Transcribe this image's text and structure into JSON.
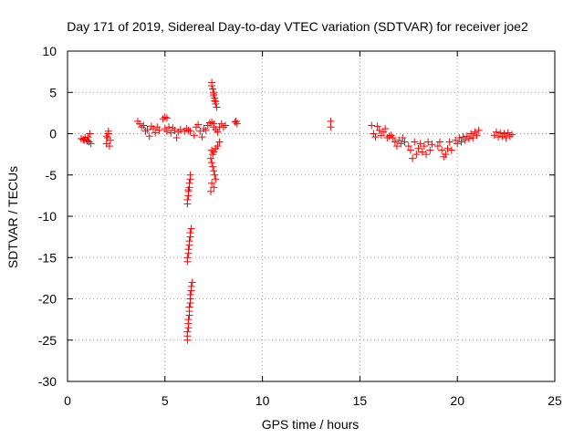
{
  "chart_data": {
    "type": "scatter",
    "title": "Day 171 of 2019, Sidereal Day-to-day VTEC variation (SDTVAR) for receiver joe2",
    "xlabel": "GPS time / hours",
    "ylabel": "SDTVAR / TECUs",
    "xlim": [
      0,
      25
    ],
    "ylim": [
      -30,
      10
    ],
    "xticks": [
      0,
      5,
      10,
      15,
      20,
      25
    ],
    "yticks": [
      10,
      5,
      0,
      -5,
      -10,
      -15,
      -20,
      -25,
      -30
    ],
    "xtick_labels": [
      "0",
      "5",
      "10",
      "15",
      "20",
      "25"
    ],
    "ytick_labels": [
      "10",
      "5",
      "0",
      "-5",
      "-10",
      "-15",
      "-20",
      "-25",
      "-30"
    ],
    "grid": true,
    "marker": "+",
    "color": "#ff0000",
    "series": [
      {
        "name": "SDTVAR",
        "points": [
          [
            0.7,
            -0.6
          ],
          [
            0.8,
            -0.7
          ],
          [
            0.9,
            -0.5
          ],
          [
            1.0,
            -0.8
          ],
          [
            1.05,
            -0.4
          ],
          [
            1.1,
            -1.0
          ],
          [
            1.15,
            0.0
          ],
          [
            1.2,
            -1.2
          ],
          [
            1.0,
            -0.9
          ],
          [
            0.85,
            -0.8
          ],
          [
            2.0,
            -1.2
          ],
          [
            2.05,
            -0.5
          ],
          [
            2.1,
            0.0
          ],
          [
            2.1,
            0.3
          ],
          [
            2.15,
            -1.5
          ],
          [
            2.2,
            -0.8
          ],
          [
            2.0,
            -0.3
          ],
          [
            3.6,
            1.5
          ],
          [
            3.7,
            1.2
          ],
          [
            3.8,
            0.8
          ],
          [
            3.9,
            1.0
          ],
          [
            4.0,
            0.3
          ],
          [
            4.1,
            0.5
          ],
          [
            4.2,
            -0.3
          ],
          [
            4.3,
            0.9
          ],
          [
            4.4,
            0.6
          ],
          [
            4.5,
            0.1
          ],
          [
            4.6,
            0.8
          ],
          [
            4.7,
            0.4
          ],
          [
            4.9,
            1.8
          ],
          [
            5.0,
            2.0
          ],
          [
            5.1,
            1.9
          ],
          [
            5.0,
            0.6
          ],
          [
            5.1,
            0.3
          ],
          [
            5.2,
            0.8
          ],
          [
            5.3,
            0.1
          ],
          [
            5.4,
            0.7
          ],
          [
            5.5,
            0.4
          ],
          [
            5.6,
            -0.5
          ],
          [
            5.7,
            0.2
          ],
          [
            5.8,
            0.5
          ],
          [
            6.0,
            0.3
          ],
          [
            6.1,
            0.6
          ],
          [
            6.2,
            0.4
          ],
          [
            6.3,
            0.3
          ],
          [
            6.5,
            -0.2
          ],
          [
            6.6,
            0.8
          ],
          [
            6.7,
            1.1
          ],
          [
            6.8,
            0.3
          ],
          [
            6.9,
            -0.4
          ],
          [
            7.0,
            0.6
          ],
          [
            7.1,
            0.4
          ],
          [
            7.2,
            1.0
          ],
          [
            7.4,
            6.2
          ],
          [
            7.4,
            5.8
          ],
          [
            7.45,
            5.4
          ],
          [
            7.5,
            5.0
          ],
          [
            7.5,
            4.6
          ],
          [
            7.55,
            4.3
          ],
          [
            7.6,
            3.9
          ],
          [
            7.6,
            3.6
          ],
          [
            7.65,
            3.2
          ],
          [
            7.5,
            4.8
          ],
          [
            7.55,
            4.0
          ],
          [
            7.4,
            -2.0
          ],
          [
            7.45,
            -2.5
          ],
          [
            7.5,
            -2.2
          ],
          [
            7.6,
            -1.8
          ],
          [
            7.7,
            -1.5
          ],
          [
            7.8,
            -1.0
          ],
          [
            7.35,
            -3.0
          ],
          [
            7.4,
            -3.5
          ],
          [
            7.45,
            -4.0
          ],
          [
            7.5,
            -4.5
          ],
          [
            7.55,
            -5.0
          ],
          [
            7.6,
            -5.5
          ],
          [
            7.4,
            -6.0
          ],
          [
            7.35,
            -7.0
          ],
          [
            7.5,
            -6.5
          ],
          [
            7.3,
            1.3
          ],
          [
            7.4,
            1.4
          ],
          [
            7.5,
            1.2
          ],
          [
            7.6,
            0.5
          ],
          [
            7.7,
            0.2
          ],
          [
            7.8,
            0.8
          ],
          [
            7.9,
            1.2
          ],
          [
            8.0,
            0.8
          ],
          [
            8.1,
            1.0
          ],
          [
            7.5,
            0.8
          ],
          [
            8.6,
            1.4
          ],
          [
            8.7,
            1.2
          ],
          [
            8.65,
            1.5
          ],
          [
            6.3,
            -5.0
          ],
          [
            6.3,
            -5.5
          ],
          [
            6.25,
            -6.0
          ],
          [
            6.25,
            -6.5
          ],
          [
            6.2,
            -7.0
          ],
          [
            6.2,
            -7.5
          ],
          [
            6.15,
            -8.0
          ],
          [
            6.15,
            -8.5
          ],
          [
            6.2,
            -6.8
          ],
          [
            6.35,
            -11.5
          ],
          [
            6.3,
            -12.0
          ],
          [
            6.3,
            -12.5
          ],
          [
            6.25,
            -13.0
          ],
          [
            6.25,
            -13.5
          ],
          [
            6.2,
            -14.0
          ],
          [
            6.2,
            -14.5
          ],
          [
            6.15,
            -15.0
          ],
          [
            6.15,
            -15.5
          ],
          [
            6.4,
            -18.0
          ],
          [
            6.35,
            -18.5
          ],
          [
            6.35,
            -19.0
          ],
          [
            6.3,
            -19.5
          ],
          [
            6.3,
            -20.0
          ],
          [
            6.3,
            -20.5
          ],
          [
            6.25,
            -21.0
          ],
          [
            6.25,
            -21.5
          ],
          [
            6.25,
            -22.0
          ],
          [
            6.2,
            -22.5
          ],
          [
            6.2,
            -23.0
          ],
          [
            6.2,
            -23.5
          ],
          [
            6.15,
            -24.0
          ],
          [
            6.15,
            -24.5
          ],
          [
            6.15,
            -25.0
          ],
          [
            13.5,
            1.5
          ],
          [
            13.5,
            0.8
          ],
          [
            15.6,
            1.0
          ],
          [
            15.7,
            0.0
          ],
          [
            15.8,
            -0.4
          ],
          [
            15.9,
            0.9
          ],
          [
            16.0,
            0.4
          ],
          [
            16.1,
            -0.2
          ],
          [
            16.2,
            0.2
          ],
          [
            16.3,
            0.6
          ],
          [
            16.4,
            -0.5
          ],
          [
            16.5,
            -0.3
          ],
          [
            16.6,
            -0.2
          ],
          [
            16.7,
            -0.5
          ],
          [
            16.8,
            -1.0
          ],
          [
            16.9,
            -1.5
          ],
          [
            17.0,
            -0.8
          ],
          [
            17.1,
            -1.2
          ],
          [
            17.2,
            -0.5
          ],
          [
            17.3,
            -1.0
          ],
          [
            17.5,
            -1.5
          ],
          [
            17.6,
            -2.0
          ],
          [
            17.7,
            -3.0
          ],
          [
            17.8,
            -1.0
          ],
          [
            17.9,
            -2.5
          ],
          [
            18.0,
            -1.8
          ],
          [
            18.1,
            -1.2
          ],
          [
            18.2,
            -2.2
          ],
          [
            18.3,
            -1.5
          ],
          [
            18.4,
            -2.5
          ],
          [
            18.5,
            -1.0
          ],
          [
            18.6,
            -2.0
          ],
          [
            18.7,
            -1.3
          ],
          [
            19.0,
            -1.5
          ],
          [
            19.1,
            -1.0
          ],
          [
            19.2,
            -2.0
          ],
          [
            19.3,
            -2.8
          ],
          [
            19.4,
            -2.5
          ],
          [
            19.5,
            -1.8
          ],
          [
            19.6,
            -1.0
          ],
          [
            19.7,
            -2.0
          ],
          [
            19.9,
            -0.8
          ],
          [
            20.0,
            -1.2
          ],
          [
            20.1,
            -0.5
          ],
          [
            20.2,
            -1.0
          ],
          [
            20.3,
            -0.4
          ],
          [
            20.4,
            -0.8
          ],
          [
            20.5,
            -0.3
          ],
          [
            20.6,
            -0.6
          ],
          [
            20.7,
            0.0
          ],
          [
            20.8,
            -0.5
          ],
          [
            20.9,
            0.2
          ],
          [
            21.0,
            -0.2
          ],
          [
            21.1,
            0.4
          ],
          [
            21.9,
            -0.2
          ],
          [
            22.0,
            0.2
          ],
          [
            22.1,
            -0.4
          ],
          [
            22.2,
            0.1
          ],
          [
            22.3,
            -0.3
          ],
          [
            22.4,
            0.0
          ],
          [
            22.5,
            -0.5
          ],
          [
            22.6,
            0.1
          ],
          [
            22.7,
            -0.3
          ],
          [
            22.8,
            -0.1
          ]
        ]
      }
    ]
  }
}
